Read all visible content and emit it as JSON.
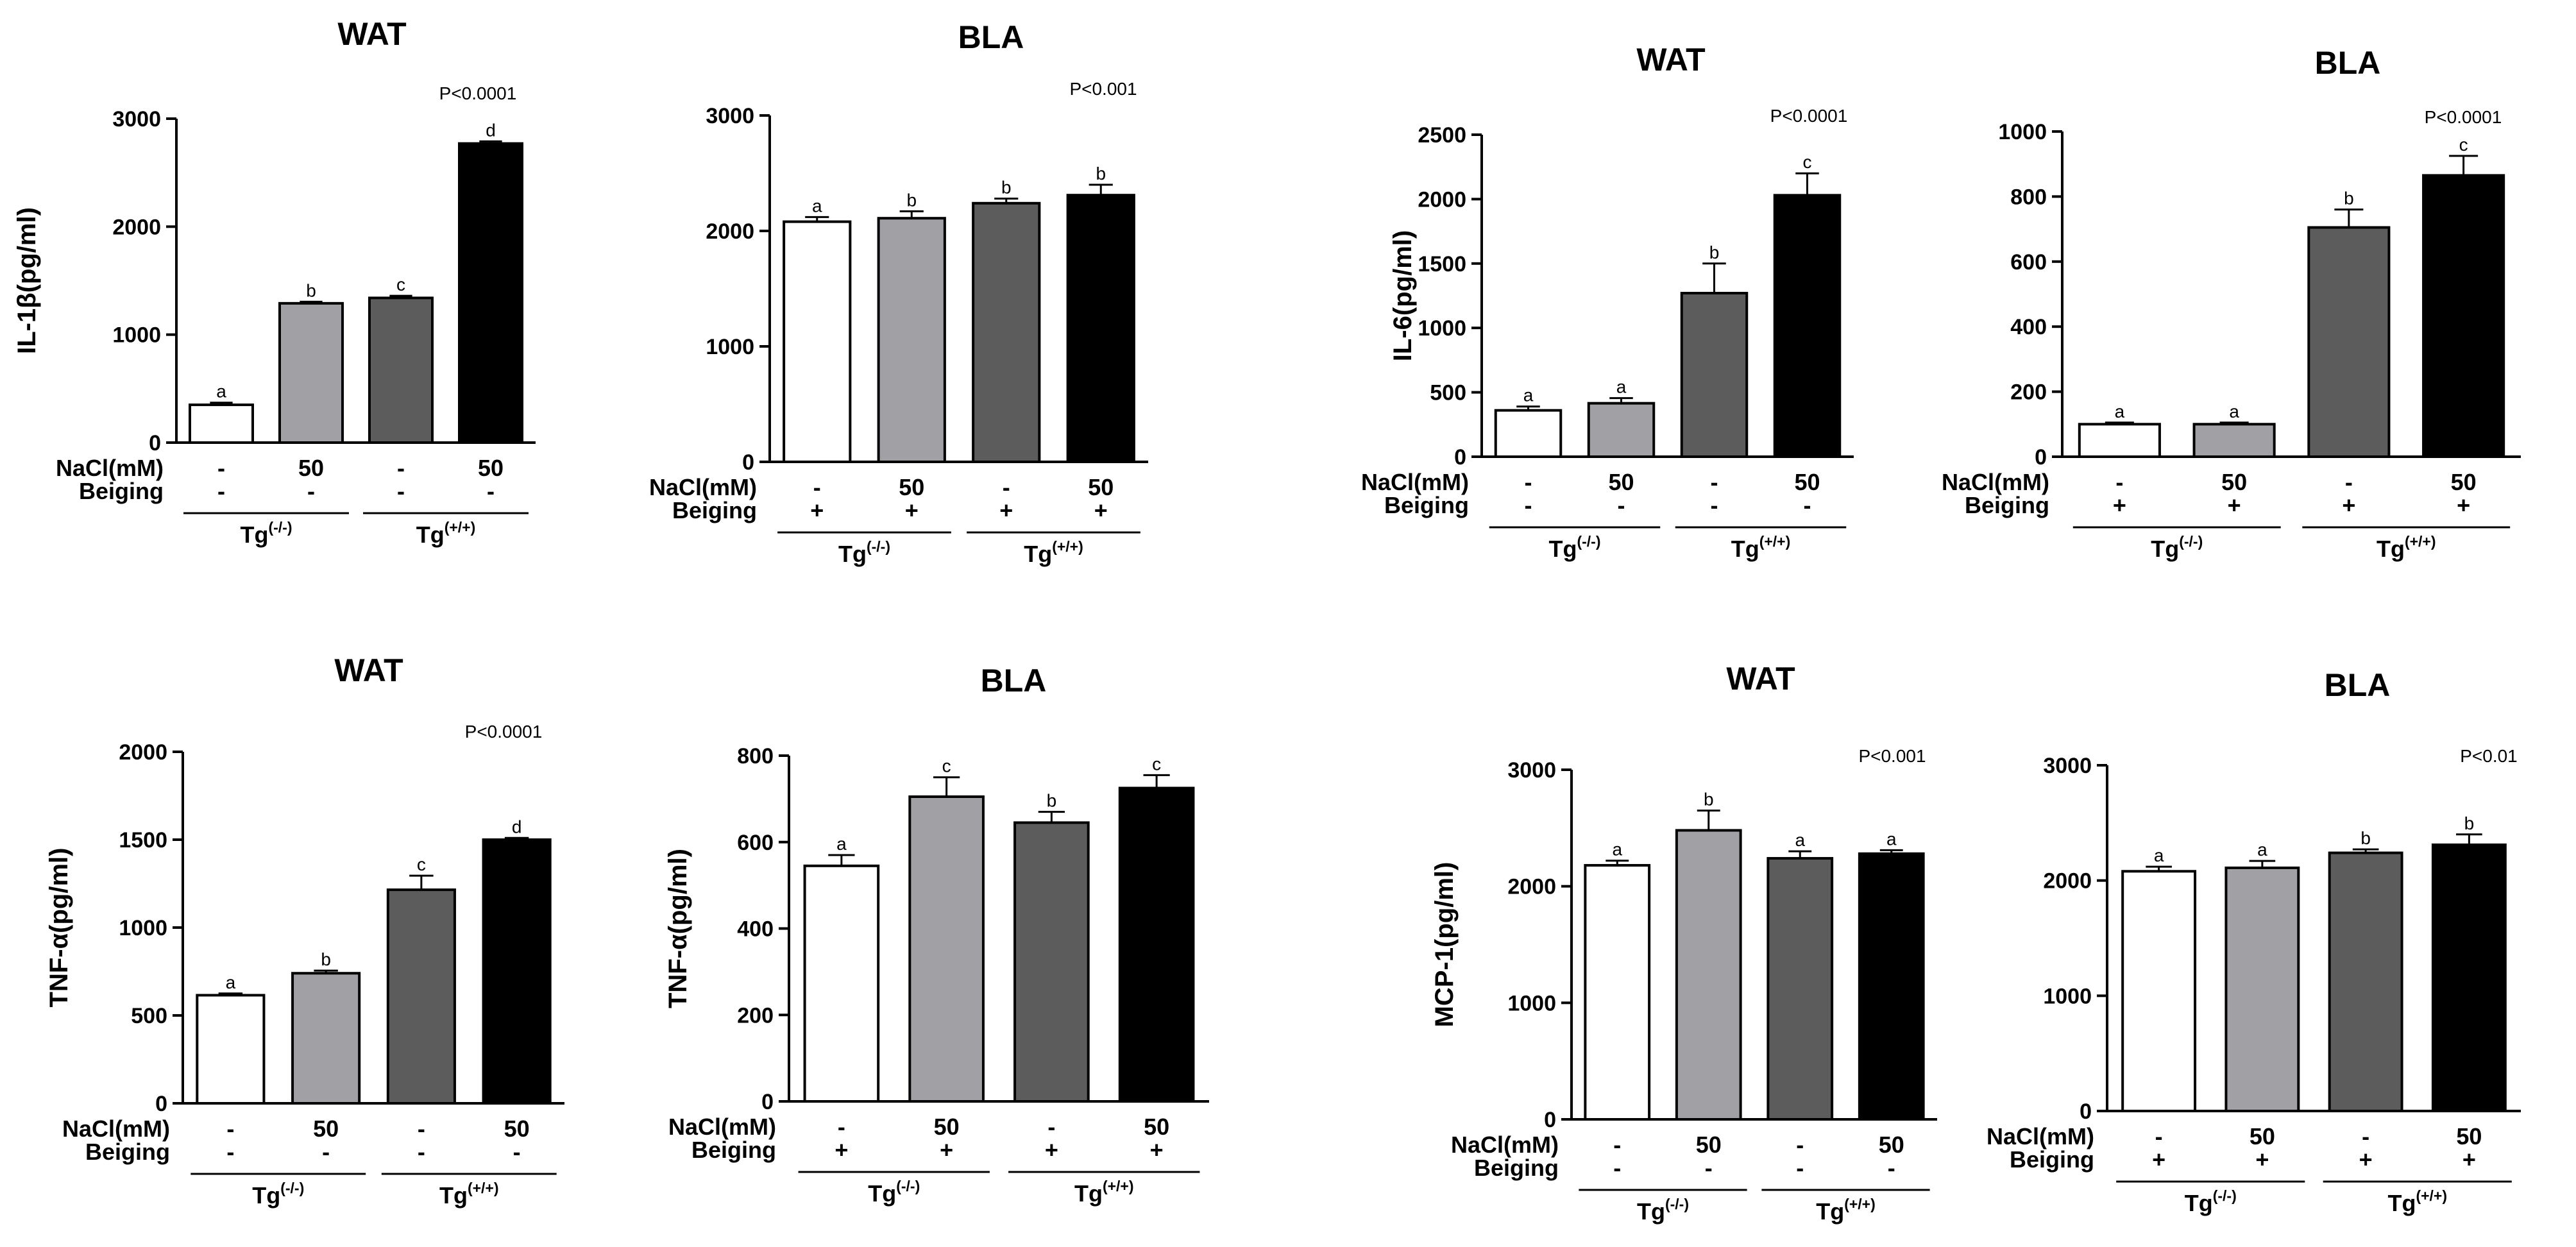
{
  "colors": {
    "bars": [
      "#ffffff",
      "#a1a1a5",
      "#5c5c5c",
      "#000000"
    ],
    "outline": "#000000"
  },
  "chart_data": [
    {
      "type": "bar",
      "title": "WAT",
      "p_value": "P<0.0001",
      "ylabel": "IL-1β(pg/ml)",
      "ylim": [
        0,
        3000
      ],
      "yticks": [
        "0",
        "1000",
        "2000",
        "3000"
      ],
      "row_labels": [
        "NaCl(mM)",
        "Beiging"
      ],
      "categories": [
        "Tg(-/-) NaCl -",
        "Tg(-/-) NaCl 50",
        "Tg(+/+) NaCl -",
        "Tg(+/+) NaCl 50"
      ],
      "nacl": [
        "-",
        "50",
        "-",
        "50"
      ],
      "beiging": [
        "-",
        "-",
        "-",
        "-"
      ],
      "groups": [
        {
          "base": "Tg",
          "sup": "(-/-)"
        },
        {
          "base": "Tg",
          "sup": "(+/+)"
        }
      ],
      "values": [
        350,
        1290,
        1340,
        2770
      ],
      "errors": [
        20,
        15,
        20,
        20
      ],
      "letters": [
        "a",
        "b",
        "c",
        "d"
      ]
    },
    {
      "type": "bar",
      "title": "BLA",
      "p_value": "P<0.001",
      "ylabel": "",
      "ylim": [
        0,
        3000
      ],
      "yticks": [
        "0",
        "1000",
        "2000",
        "3000"
      ],
      "row_labels": [
        "NaCl(mM)",
        "Beiging"
      ],
      "categories": [
        "Tg(-/-) NaCl -",
        "Tg(-/-) NaCl 50",
        "Tg(+/+) NaCl -",
        "Tg(+/+) NaCl 50"
      ],
      "nacl": [
        "-",
        "50",
        "-",
        "50"
      ],
      "beiging": [
        "+",
        "+",
        "+",
        "+"
      ],
      "groups": [
        {
          "base": "Tg",
          "sup": "(-/-)"
        },
        {
          "base": "Tg",
          "sup": "(+/+)"
        }
      ],
      "values": [
        2080,
        2110,
        2240,
        2310
      ],
      "errors": [
        40,
        60,
        40,
        90
      ],
      "letters": [
        "a",
        "b",
        "b",
        "b"
      ]
    },
    {
      "type": "bar",
      "title": "WAT",
      "p_value": "P<0.0001",
      "ylabel": "IL-6(pg/ml)",
      "ylim": [
        0,
        2500
      ],
      "yticks": [
        "0",
        "500",
        "1000",
        "1500",
        "2000",
        "2500"
      ],
      "row_labels": [
        "NaCl(mM)",
        "Beiging"
      ],
      "categories": [
        "Tg(-/-) NaCl -",
        "Tg(-/-) NaCl 50",
        "Tg(+/+) NaCl -",
        "Tg(+/+) NaCl 50"
      ],
      "nacl": [
        "-",
        "50",
        "-",
        "50"
      ],
      "beiging": [
        "-",
        "-",
        "-",
        "-"
      ],
      "groups": [
        {
          "base": "Tg",
          "sup": "(-/-)"
        },
        {
          "base": "Tg",
          "sup": "(+/+)"
        }
      ],
      "values": [
        360,
        415,
        1270,
        2030
      ],
      "errors": [
        30,
        40,
        230,
        170
      ],
      "letters": [
        "a",
        "a",
        "b",
        "c"
      ]
    },
    {
      "type": "bar",
      "title": "BLA",
      "p_value": "P<0.0001",
      "ylabel": "",
      "ylim": [
        0,
        1000
      ],
      "yticks": [
        "0",
        "200",
        "400",
        "600",
        "800",
        "1000"
      ],
      "row_labels": [
        "NaCl(mM)",
        "Beiging"
      ],
      "categories": [
        "Tg(-/-) NaCl -",
        "Tg(-/-) NaCl 50",
        "Tg(+/+) NaCl -",
        "Tg(+/+) NaCl 50"
      ],
      "nacl": [
        "-",
        "50",
        "-",
        "50"
      ],
      "beiging": [
        "+",
        "+",
        "+",
        "+"
      ],
      "groups": [
        {
          "base": "Tg",
          "sup": "(-/-)"
        },
        {
          "base": "Tg",
          "sup": "(+/+)"
        }
      ],
      "values": [
        100,
        100,
        705,
        865
      ],
      "errors": [
        5,
        5,
        55,
        60
      ],
      "letters": [
        "a",
        "a",
        "b",
        "c"
      ]
    },
    {
      "type": "bar",
      "title": "WAT",
      "p_value": "P<0.0001",
      "ylabel": "TNF-α(pg/ml)",
      "ylim": [
        0,
        2000
      ],
      "yticks": [
        "0",
        "500",
        "1000",
        "1500",
        "2000"
      ],
      "row_labels": [
        "NaCl(mM)",
        "Beiging"
      ],
      "categories": [
        "Tg(-/-) NaCl -",
        "Tg(-/-) NaCl 50",
        "Tg(+/+) NaCl -",
        "Tg(+/+) NaCl 50"
      ],
      "nacl": [
        "-",
        "50",
        "-",
        "50"
      ],
      "beiging": [
        "-",
        "-",
        "-",
        "-"
      ],
      "groups": [
        {
          "base": "Tg",
          "sup": "(-/-)"
        },
        {
          "base": "Tg",
          "sup": "(+/+)"
        }
      ],
      "values": [
        615,
        740,
        1215,
        1500
      ],
      "errors": [
        10,
        15,
        80,
        10
      ],
      "letters": [
        "a",
        "b",
        "c",
        "d"
      ]
    },
    {
      "type": "bar",
      "title": "BLA",
      "p_value": "",
      "ylabel": "TNF-α(pg/ml)",
      "ylim": [
        0,
        800
      ],
      "yticks": [
        "0",
        "200",
        "400",
        "600",
        "800"
      ],
      "row_labels": [
        "NaCl(mM)",
        "Beiging"
      ],
      "categories": [
        "Tg(-/-) NaCl -",
        "Tg(-/-) NaCl 50",
        "Tg(+/+) NaCl -",
        "Tg(+/+) NaCl 50"
      ],
      "nacl": [
        "-",
        "50",
        "-",
        "50"
      ],
      "beiging": [
        "+",
        "+",
        "+",
        "+"
      ],
      "groups": [
        {
          "base": "Tg",
          "sup": "(-/-)"
        },
        {
          "base": "Tg",
          "sup": "(+/+)"
        }
      ],
      "values": [
        545,
        705,
        645,
        725
      ],
      "errors": [
        25,
        45,
        25,
        30
      ],
      "letters": [
        "a",
        "c",
        "b",
        "c"
      ]
    },
    {
      "type": "bar",
      "title": "WAT",
      "p_value": "P<0.001",
      "ylabel": "MCP-1(pg/ml)",
      "ylim": [
        0,
        3000
      ],
      "yticks": [
        "0",
        "1000",
        "2000",
        "3000"
      ],
      "row_labels": [
        "NaCl(mM)",
        "Beiging"
      ],
      "categories": [
        "Tg(-/-) NaCl -",
        "Tg(-/-) NaCl 50",
        "Tg(+/+) NaCl -",
        "Tg(+/+) NaCl 50"
      ],
      "nacl": [
        "-",
        "50",
        "-",
        "50"
      ],
      "beiging": [
        "-",
        "-",
        "-",
        "-"
      ],
      "groups": [
        {
          "base": "Tg",
          "sup": "(-/-)"
        },
        {
          "base": "Tg",
          "sup": "(+/+)"
        }
      ],
      "values": [
        2180,
        2480,
        2240,
        2280
      ],
      "errors": [
        40,
        170,
        60,
        30
      ],
      "letters": [
        "a",
        "b",
        "a",
        "a"
      ]
    },
    {
      "type": "bar",
      "title": "BLA",
      "p_value": "P<0.01",
      "ylabel": "",
      "ylim": [
        0,
        3000
      ],
      "yticks": [
        "0",
        "1000",
        "2000",
        "3000"
      ],
      "row_labels": [
        "NaCl(mM)",
        "Beiging"
      ],
      "categories": [
        "Tg(-/-) NaCl -",
        "Tg(-/-) NaCl 50",
        "Tg(+/+) NaCl -",
        "Tg(+/+) NaCl 50"
      ],
      "nacl": [
        "-",
        "50",
        "-",
        "50"
      ],
      "beiging": [
        "+",
        "+",
        "+",
        "+"
      ],
      "groups": [
        {
          "base": "Tg",
          "sup": "(-/-)"
        },
        {
          "base": "Tg",
          "sup": "(+/+)"
        }
      ],
      "values": [
        2080,
        2110,
        2240,
        2310
      ],
      "errors": [
        40,
        60,
        30,
        90
      ],
      "letters": [
        "a",
        "a",
        "b",
        "b"
      ]
    }
  ]
}
